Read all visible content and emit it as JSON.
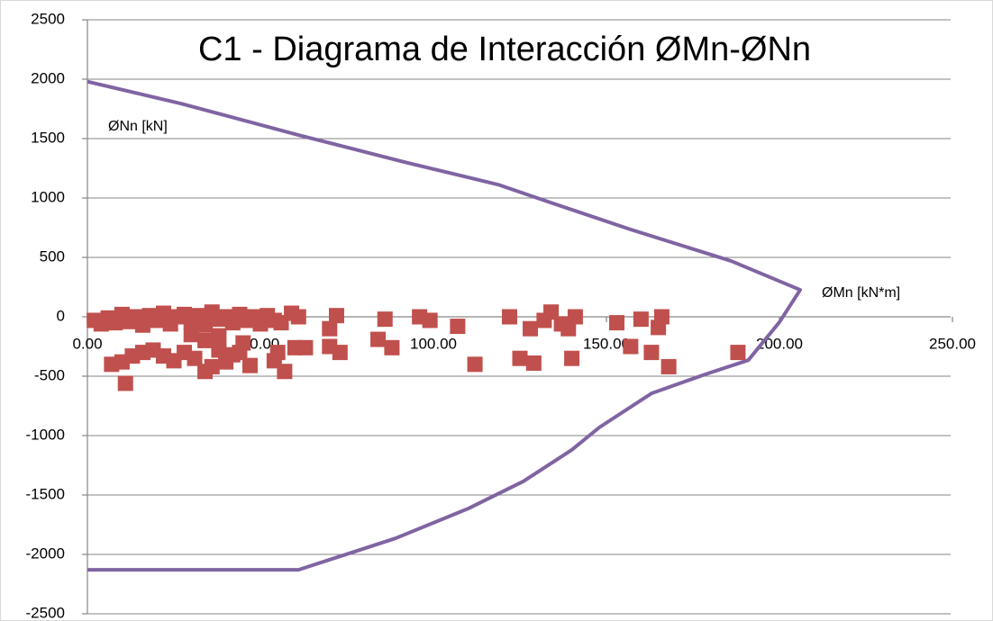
{
  "chart_data": {
    "type": "scatter",
    "title": "C1 - Diagrama de Interacción ØMn-ØNn",
    "y_axis_label": "ØNn [kN]",
    "x_axis_label": "ØMn [kN*m]",
    "xlim": [
      0,
      250
    ],
    "ylim": [
      -2500,
      2500
    ],
    "xticks": [
      {
        "value": 0,
        "label": "0.00"
      },
      {
        "value": 50,
        "label": "50.00"
      },
      {
        "value": 100,
        "label": "100.00"
      },
      {
        "value": 150,
        "label": "150.00"
      },
      {
        "value": 200,
        "label": "200.00"
      },
      {
        "value": 250,
        "label": "250.00"
      }
    ],
    "yticks": [
      2500,
      2000,
      1500,
      1000,
      500,
      0,
      -500,
      -1000,
      -1500,
      -2000,
      -2500
    ],
    "grid": true,
    "series": [
      {
        "color": "#8064a2",
        "marker": "none",
        "line": true,
        "x": [
          0,
          27,
          61,
          92,
          119,
          134,
          157,
          186,
          206,
          200,
          191,
          179,
          163,
          148,
          140,
          126,
          110,
          89,
          61,
          0
        ],
        "y": [
          1980,
          1795,
          1530,
          1300,
          1110,
          960,
          735,
          470,
          227,
          -45,
          -365,
          -480,
          -645,
          -930,
          -1120,
          -1385,
          -1615,
          -1865,
          -2130,
          -2130
        ]
      },
      {
        "color": "#c0504d",
        "marker": "square",
        "line": false,
        "x": [
          2,
          4,
          6,
          8,
          10,
          12,
          14,
          16,
          18,
          20,
          22,
          24,
          26,
          28,
          30,
          32,
          34,
          36,
          38,
          40,
          42,
          44,
          46,
          48,
          50,
          52,
          54,
          56,
          59,
          61,
          7,
          10,
          13,
          16,
          19,
          22,
          25,
          28,
          31,
          34,
          36,
          38,
          40,
          42,
          44,
          47,
          54,
          55,
          57,
          60,
          63,
          11,
          34,
          38,
          30,
          45,
          70,
          72,
          70,
          73,
          84,
          86,
          88,
          96,
          99,
          107,
          112,
          122,
          125,
          128,
          129,
          132,
          134,
          137,
          139,
          140,
          141,
          153,
          157,
          160,
          163,
          165,
          166,
          168,
          188
        ],
        "y": [
          -30,
          -60,
          -10,
          -50,
          20,
          -40,
          0,
          -70,
          10,
          -30,
          30,
          -60,
          0,
          20,
          -40,
          10,
          -70,
          40,
          -20,
          0,
          -50,
          20,
          -30,
          0,
          -60,
          10,
          -30,
          -50,
          30,
          0,
          -400,
          -380,
          -330,
          -300,
          -280,
          -330,
          -370,
          -300,
          -350,
          -460,
          -420,
          -280,
          -380,
          -320,
          -300,
          -410,
          -370,
          -300,
          -460,
          -260,
          -260,
          -560,
          -200,
          -160,
          -150,
          -220,
          -100,
          10,
          -250,
          -300,
          -190,
          -20,
          -260,
          0,
          -30,
          -80,
          -400,
          0,
          -350,
          -100,
          -390,
          -30,
          40,
          -60,
          -100,
          -350,
          0,
          -50,
          -250,
          -20,
          -300,
          -90,
          0,
          -420,
          -300
        ]
      }
    ]
  }
}
